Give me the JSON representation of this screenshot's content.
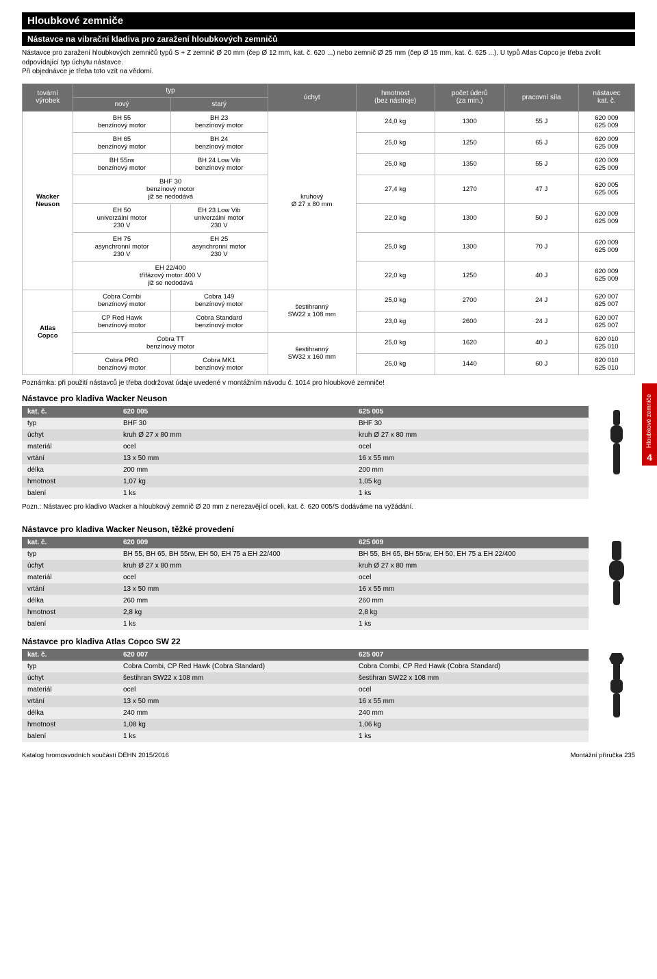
{
  "header": {
    "h1": "Hloubkové zemniče",
    "h2": "Nástavce na vibrační kladiva pro zaražení hloubkových zemničů",
    "intro": "Nástavce pro zaražení hloubkových zemničů typů S + Z zemnič Ø 20 mm (čep Ø 12 mm, kat. č. 620 ...) nebo zemnič Ø 25 mm (čep Ø 15 mm, kat. č. 625 ...). U typů Atlas Copco je třeba zvolit odpovídající typ úchytu nástavce.\nPři objednávce je třeba toto vzít na vědomí."
  },
  "main_table": {
    "head": {
      "c1": "tovární\nvýrobek",
      "c2": "typ",
      "c2a": "nový",
      "c2b": "starý",
      "c3": "úchyt",
      "c4": "hmotnost\n(bez nástroje)",
      "c5": "počet úderů\n(za min.)",
      "c6": "pracovní síla",
      "c7": "nástavec\nkat. č."
    },
    "wacker": "Wacker\nNeuson",
    "atlas": "Atlas\nCopco",
    "uchyt_wacker": "kruhový\nØ 27 x 80 mm",
    "uchyt_atlas1": "šestihranný\nSW22 x 108 mm",
    "uchyt_atlas2": "šestihranný\nSW32 x 160 mm",
    "rows": [
      {
        "n": "BH 55\nbenzínový motor",
        "s": "BH 23\nbenzínový motor",
        "h": "24,0 kg",
        "u": "1300",
        "p": "55 J",
        "k": "620 009\n625 009"
      },
      {
        "n": "BH 65\nbenzínový motor",
        "s": "BH 24\nbenzínový motor",
        "h": "25,0 kg",
        "u": "1250",
        "p": "65 J",
        "k": "620 009\n625 009"
      },
      {
        "n": "BH 55rw\nbenzínový motor",
        "s": "BH 24 Low Vib\nbenzínový motor",
        "h": "25,0 kg",
        "u": "1350",
        "p": "55 J",
        "k": "620 009\n625 009"
      },
      {
        "n": "BHF 30\nbenzínový motor\njiž se nedodává",
        "s": "",
        "h": "27,4 kg",
        "u": "1270",
        "p": "47 J",
        "k": "620 005\n625 005"
      },
      {
        "n": "EH 50\nuniverzální motor\n230 V",
        "s": "EH 23 Low Vib\nuniverzální motor\n230 V",
        "h": "22,0 kg",
        "u": "1300",
        "p": "50 J",
        "k": "620 009\n625 009"
      },
      {
        "n": "EH 75\nasynchronní motor\n230 V",
        "s": "EH 25\nasynchronní motor\n230 V",
        "h": "25,0 kg",
        "u": "1300",
        "p": "70 J",
        "k": "620 009\n625 009"
      },
      {
        "n": "EH 22/400\ntřífázový motor 400 V\njiž se nedodává",
        "s": "",
        "h": "22,0 kg",
        "u": "1250",
        "p": "40 J",
        "k": "620 009\n625 009"
      },
      {
        "n": "Cobra Combi\nbenzínový motor",
        "s": "Cobra 149\nbenzínový motor",
        "h": "25,0 kg",
        "u": "2700",
        "p": "24 J",
        "k": "620 007\n625 007"
      },
      {
        "n": "CP Red Hawk\nbenzínový motor",
        "s": "Cobra Standard\nbenzínový motor",
        "h": "23,0 kg",
        "u": "2600",
        "p": "24 J",
        "k": "620 007\n625 007"
      },
      {
        "n": "Cobra TT\nbenzínový motor",
        "s": "",
        "h": "25,0 kg",
        "u": "1620",
        "p": "40 J",
        "k": "620 010\n625 010"
      },
      {
        "n": "Cobra PRO\nbenzínový motor",
        "s": "Cobra MK1\nbenzínový motor",
        "h": "25,0 kg",
        "u": "1440",
        "p": "60 J",
        "k": "620 010\n625 010"
      }
    ],
    "note": "Poznámka: při použití nástavců je třeba dodržovat údaje uvedené v montážním návodu č. 1014 pro hloubkové zemniče!"
  },
  "sections": [
    {
      "title": "Nástavce pro kladiva Wacker Neuson",
      "cols": [
        "620 005",
        "625 005"
      ],
      "rows": [
        [
          "kat. č.",
          "620 005",
          "625 005"
        ],
        [
          "typ",
          "BHF 30",
          "BHF 30"
        ],
        [
          "úchyt",
          "kruh Ø 27 x 80 mm",
          "kruh Ø 27 x 80 mm"
        ],
        [
          "materiál",
          "ocel",
          "ocel"
        ],
        [
          "vrtání",
          "13 x 50 mm",
          "16 x 55 mm"
        ],
        [
          "délka",
          "200 mm",
          "200 mm"
        ],
        [
          "hmotnost",
          "1,07 kg",
          "1,05 kg"
        ],
        [
          "balení",
          "1 ks",
          "1 ks"
        ]
      ],
      "note": "Pozn.: Nástavec pro kladivo Wacker a hloubkový zemnič Ø 20 mm z nerezavějící oceli, kat. č. 620 005/S dodáváme na vyžádání."
    },
    {
      "title": "Nástavce pro kladiva Wacker Neuson, těžké provedení",
      "rows": [
        [
          "kat. č.",
          "620 009",
          "625 009"
        ],
        [
          "typ",
          "BH 55, BH 65, BH 55rw, EH 50, EH 75 a EH 22/400",
          "BH 55, BH 65, BH 55rw, EH 50, EH 75 a EH 22/400"
        ],
        [
          "úchyt",
          "kruh Ø 27 x 80 mm",
          "kruh Ø 27 x 80 mm"
        ],
        [
          "materiál",
          "ocel",
          "ocel"
        ],
        [
          "vrtání",
          "13 x 50 mm",
          "16 x 55 mm"
        ],
        [
          "délka",
          "260 mm",
          "260 mm"
        ],
        [
          "hmotnost",
          "2,8 kg",
          "2,8 kg"
        ],
        [
          "balení",
          "1 ks",
          "1 ks"
        ]
      ]
    },
    {
      "title": "Nástavce pro kladiva Atlas Copco SW 22",
      "rows": [
        [
          "kat. č.",
          "620 007",
          "625 007"
        ],
        [
          "typ",
          "Cobra Combi, CP Red Hawk (Cobra Standard)",
          "Cobra Combi, CP Red Hawk (Cobra Standard)"
        ],
        [
          "úchyt",
          "šestihran SW22 x 108 mm",
          "šestihran SW22 x 108 mm"
        ],
        [
          "materiál",
          "ocel",
          "ocel"
        ],
        [
          "vrtání",
          "13 x 50 mm",
          "16 x 55 mm"
        ],
        [
          "délka",
          "240 mm",
          "240 mm"
        ],
        [
          "hmotnost",
          "1,08 kg",
          "1,06 kg"
        ],
        [
          "balení",
          "1 ks",
          "1 ks"
        ]
      ]
    }
  ],
  "side": {
    "label": "Hloubkové zemniče",
    "num": "4"
  },
  "footer": {
    "left": "Katalog hromosvodních součástí DEHN 2015/2016",
    "right": "Montážní příručka 235"
  },
  "colors": {
    "header_bg": "#6e6e6e",
    "accent": "#c00"
  }
}
